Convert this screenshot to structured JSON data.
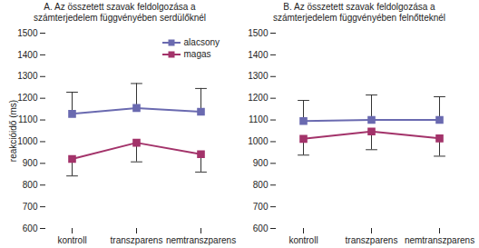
{
  "chart_data": [
    {
      "type": "line",
      "title": "A. Az összetett szavak feldolgozása a számterjedelem függvényében serdülőknél",
      "y_label": "reakcióidő (ms)",
      "categories": [
        "kontroll",
        "transzparens",
        "nemtranszparens"
      ],
      "series": [
        {
          "name": "alacsony",
          "color": "#6a6ab0",
          "marker": "square",
          "values": [
            1128,
            1155,
            1138
          ],
          "error_plus": [
            100,
            113,
            107
          ]
        },
        {
          "name": "magas",
          "color": "#a3336a",
          "marker": "square",
          "values": [
            920,
            995,
            942
          ],
          "error_minus": [
            78,
            88,
            82
          ]
        }
      ],
      "ylim": [
        600,
        1500
      ],
      "yticks": [
        600,
        700,
        800,
        900,
        1000,
        1100,
        1200,
        1300,
        1400,
        1500
      ],
      "grid": false,
      "legend": "top-right"
    },
    {
      "type": "line",
      "title": "B. Az összetett szavak feldolgozása a számterjedelem függvényében felnőtteknél",
      "categories": [
        "kontroll",
        "transzparens",
        "nemtranszparens"
      ],
      "series": [
        {
          "name": "alacsony",
          "color": "#6a6ab0",
          "marker": "square",
          "values": [
            1095,
            1100,
            1100
          ],
          "error_plus": [
            95,
            115,
            107
          ]
        },
        {
          "name": "magas",
          "color": "#a3336a",
          "marker": "square",
          "values": [
            1013,
            1047,
            1015
          ],
          "error_minus": [
            75,
            84,
            82
          ]
        }
      ],
      "ylim": [
        600,
        1500
      ],
      "yticks": [
        600,
        700,
        800,
        900,
        1000,
        1100,
        1200,
        1300,
        1400,
        1500
      ],
      "grid": false
    }
  ]
}
